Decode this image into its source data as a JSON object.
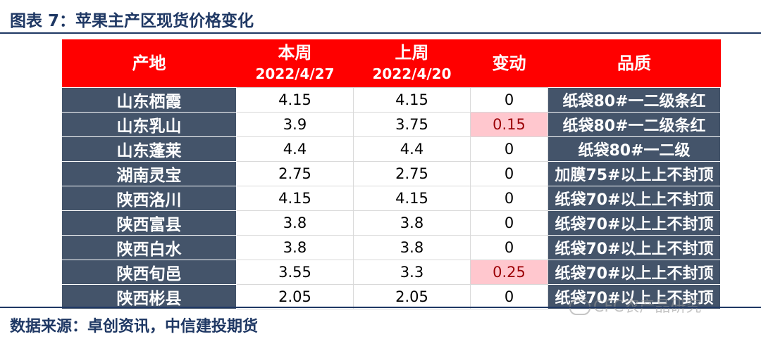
{
  "title": "图表 7：苹果主产区现货价格变化",
  "source": "数据来源：卓创资讯，中信建投期货",
  "watermark": "CFC农产品研究",
  "table": {
    "headers": {
      "place": "产地",
      "this_week": "本周",
      "this_week_date": "2022/4/27",
      "last_week": "上周",
      "last_week_date": "2022/4/20",
      "change": "变动",
      "quality": "品质"
    },
    "rows": [
      {
        "place": "山东栖霞",
        "this_week": "4.15",
        "last_week": "4.15",
        "change": "0",
        "quality": "纸袋80#一二级条红"
      },
      {
        "place": "山东乳山",
        "this_week": "3.9",
        "last_week": "3.75",
        "change": "0.15",
        "quality": "纸袋80#一二级条红"
      },
      {
        "place": "山东蓬莱",
        "this_week": "4.4",
        "last_week": "4.4",
        "change": "0",
        "quality": "纸袋80#一二级"
      },
      {
        "place": "湖南灵宝",
        "this_week": "2.75",
        "last_week": "2.75",
        "change": "0",
        "quality": "加膜75#以上上不封顶"
      },
      {
        "place": "陕西洛川",
        "this_week": "4.15",
        "last_week": "4.15",
        "change": "0",
        "quality": "纸袋70#以上上不封顶"
      },
      {
        "place": "陕西富县",
        "this_week": "3.8",
        "last_week": "3.8",
        "change": "0",
        "quality": "纸袋70#以上上不封顶"
      },
      {
        "place": "陕西白水",
        "this_week": "3.8",
        "last_week": "3.8",
        "change": "0",
        "quality": "纸袋70#以上上不封顶"
      },
      {
        "place": "陕西旬邑",
        "this_week": "3.55",
        "last_week": "3.3",
        "change": "0.25",
        "quality": "纸袋70#以上上不封顶"
      },
      {
        "place": "陕西彬县",
        "this_week": "2.05",
        "last_week": "2.05",
        "change": "0",
        "quality": "纸袋70#以上上不封顶"
      }
    ],
    "highlight_color": "#ffc7ce",
    "header_color": "#ff0000",
    "label_column_color": "#44546a"
  }
}
